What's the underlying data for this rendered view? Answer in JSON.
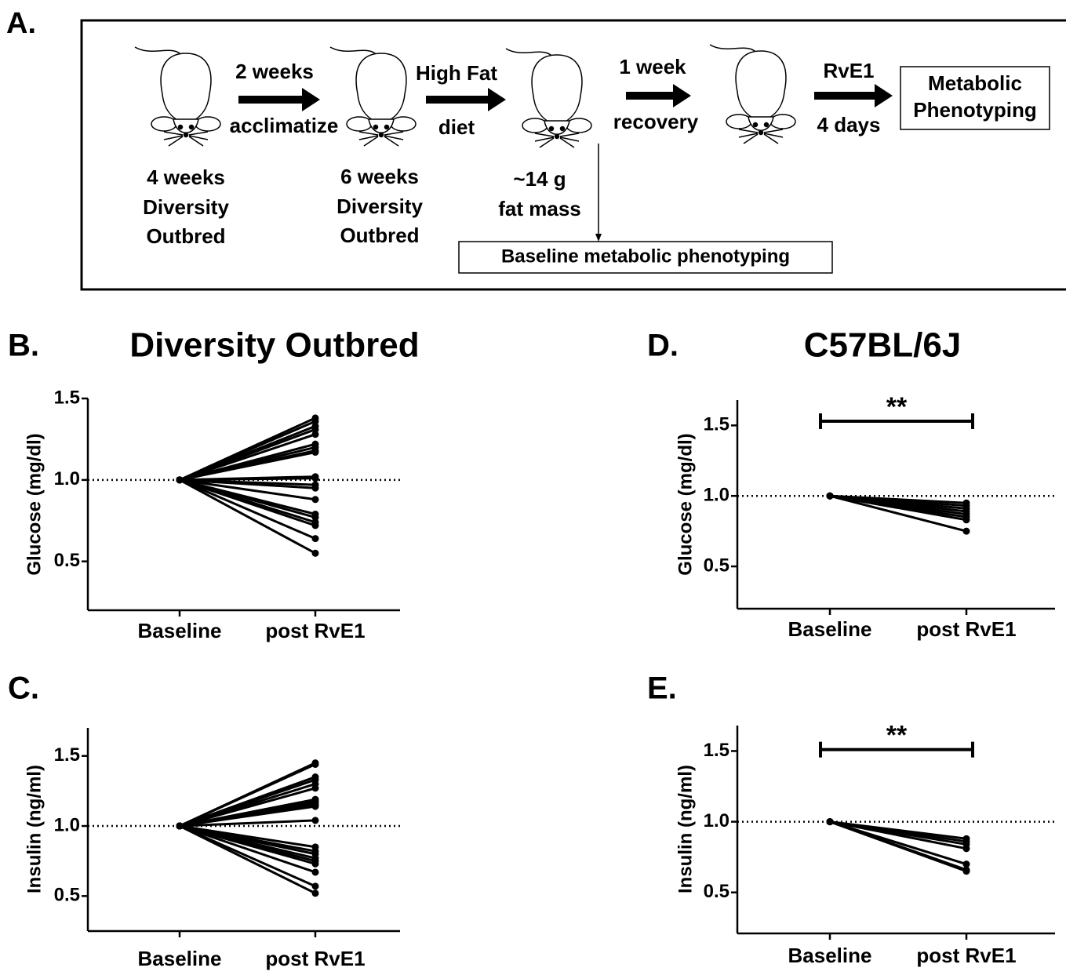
{
  "diagram": {
    "panel_label": "A.",
    "arrows": [
      {
        "above": "2 weeks",
        "below": "acclimatize"
      },
      {
        "above": "High Fat",
        "below": "diet"
      },
      {
        "above": "1 week",
        "below": "recovery"
      },
      {
        "above": "RvE1",
        "below": "4 days"
      }
    ],
    "captions": [
      [
        "4 weeks",
        "Diversity",
        "Outbred"
      ],
      [
        "6 weeks",
        "Diversity",
        "Outbred"
      ],
      [
        "~14 g",
        "fat mass"
      ]
    ],
    "baseline_box": "Baseline metabolic phenotyping",
    "final_box": [
      "Metabolic",
      "Phenotyping"
    ]
  },
  "chart_data": [
    {
      "type": "line",
      "panel_label": "B.",
      "title": "Diversity Outbred",
      "y_label": "Glucose (mg/dl)",
      "color": "#000000",
      "categories": [
        "Baseline",
        "post RvE1"
      ],
      "ylim": [
        0.2,
        1.5
      ],
      "yticks": [
        0.5,
        {
          "value": 1,
          "label": "1.0"
        },
        1.5
      ],
      "hline": 1,
      "series": [
        {
          "values": [
            1,
            1.38
          ]
        },
        {
          "values": [
            1,
            1.36
          ]
        },
        {
          "values": [
            1,
            1.33
          ]
        },
        {
          "values": [
            1,
            1.31
          ]
        },
        {
          "values": [
            1,
            1.28
          ]
        },
        {
          "values": [
            1,
            1.22
          ]
        },
        {
          "values": [
            1,
            1.2
          ]
        },
        {
          "values": [
            1,
            1.18
          ]
        },
        {
          "values": [
            1,
            1.17
          ]
        },
        {
          "values": [
            1,
            1.02
          ]
        },
        {
          "values": [
            1,
            1.01
          ]
        },
        {
          "values": [
            1,
            0.97
          ]
        },
        {
          "values": [
            1,
            0.95
          ]
        },
        {
          "values": [
            1,
            0.88
          ]
        },
        {
          "values": [
            1,
            0.79
          ]
        },
        {
          "values": [
            1,
            0.77
          ]
        },
        {
          "values": [
            1,
            0.74
          ]
        },
        {
          "values": [
            1,
            0.72
          ]
        },
        {
          "values": [
            1,
            0.64
          ]
        },
        {
          "values": [
            1,
            0.55
          ]
        }
      ]
    },
    {
      "type": "line",
      "panel_label": "C.",
      "y_label": "Insulin (ng/ml)",
      "color": "#000000",
      "categories": [
        "Baseline",
        "post RvE1"
      ],
      "ylim": [
        0.25,
        1.7
      ],
      "yticks": [
        0.5,
        {
          "value": 1,
          "label": "1.0"
        },
        1.5
      ],
      "hline": 1,
      "series": [
        {
          "values": [
            1,
            1.45
          ]
        },
        {
          "values": [
            1,
            1.44
          ]
        },
        {
          "values": [
            1,
            1.35
          ]
        },
        {
          "values": [
            1,
            1.33
          ]
        },
        {
          "values": [
            1,
            1.3
          ]
        },
        {
          "values": [
            1,
            1.27
          ]
        },
        {
          "values": [
            1,
            1.19
          ]
        },
        {
          "values": [
            1,
            1.18
          ]
        },
        {
          "values": [
            1,
            1.17
          ]
        },
        {
          "values": [
            1,
            1.16
          ]
        },
        {
          "values": [
            1,
            1.15
          ]
        },
        {
          "values": [
            1,
            1.14
          ]
        },
        {
          "values": [
            1,
            1.04
          ]
        },
        {
          "values": [
            1,
            0.85
          ]
        },
        {
          "values": [
            1,
            0.82
          ]
        },
        {
          "values": [
            1,
            0.8
          ]
        },
        {
          "values": [
            1,
            0.77
          ]
        },
        {
          "values": [
            1,
            0.75
          ]
        },
        {
          "values": [
            1,
            0.73
          ]
        },
        {
          "values": [
            1,
            0.67
          ]
        },
        {
          "values": [
            1,
            0.57
          ]
        },
        {
          "values": [
            1,
            0.52
          ]
        }
      ]
    },
    {
      "type": "line",
      "panel_label": "D.",
      "title": "C57BL/6J",
      "y_label": "Glucose (mg/dl)",
      "color": "#000000",
      "categories": [
        "Baseline",
        "post RvE1"
      ],
      "ylim": [
        0.2,
        1.68
      ],
      "yticks": [
        0.5,
        {
          "value": 1,
          "label": "1.0"
        },
        1.5
      ],
      "hline": 1,
      "significance": {
        "label": "**",
        "y": 1.53
      },
      "series": [
        {
          "values": [
            1,
            0.95
          ]
        },
        {
          "values": [
            1,
            0.93
          ]
        },
        {
          "values": [
            1,
            0.91
          ]
        },
        {
          "values": [
            1,
            0.89
          ]
        },
        {
          "values": [
            1,
            0.87
          ]
        },
        {
          "values": [
            1,
            0.85
          ]
        },
        {
          "values": [
            1,
            0.83
          ]
        },
        {
          "values": [
            1,
            0.75
          ]
        }
      ]
    },
    {
      "type": "line",
      "panel_label": "E.",
      "y_label": "Insulin (ng/ml)",
      "color": "#000000",
      "categories": [
        "Baseline",
        "post RvE1"
      ],
      "ylim": [
        0.21,
        1.68
      ],
      "yticks": [
        0.5,
        {
          "value": 1,
          "label": "1.0"
        },
        1.5
      ],
      "hline": 1,
      "significance": {
        "label": "**",
        "y": 1.51
      },
      "series": [
        {
          "values": [
            1,
            0.88
          ]
        },
        {
          "values": [
            1,
            0.86
          ]
        },
        {
          "values": [
            1,
            0.84
          ]
        },
        {
          "values": [
            1,
            0.81
          ]
        },
        {
          "values": [
            1,
            0.7
          ]
        },
        {
          "values": [
            1,
            0.66
          ]
        },
        {
          "values": [
            1,
            0.65
          ]
        }
      ]
    }
  ]
}
